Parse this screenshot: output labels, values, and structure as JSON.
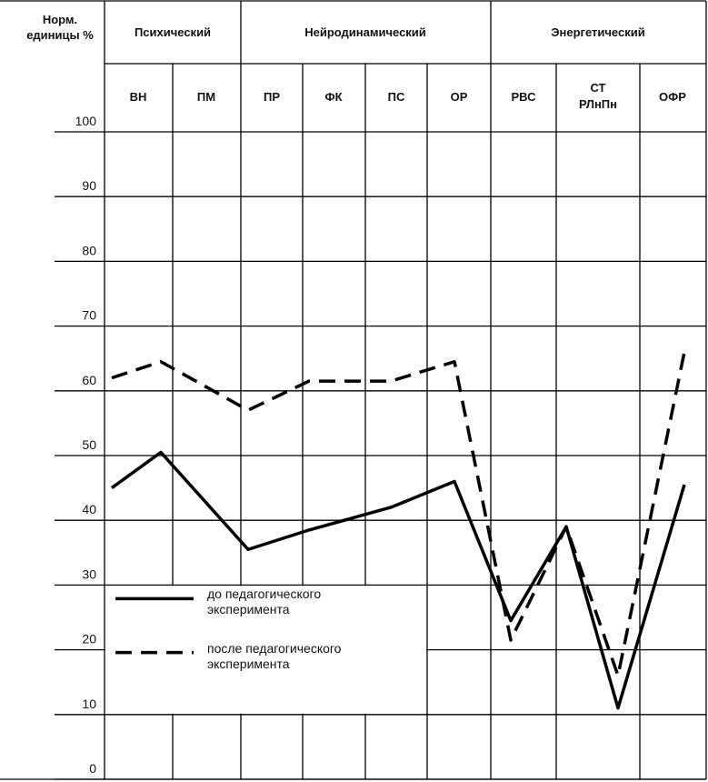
{
  "chart_data": {
    "type": "line",
    "y_label": "Норм. единицы %",
    "groups": [
      "Психический",
      "Нейродинамический",
      "Энергетический"
    ],
    "categories": [
      "ВН",
      "ПМ",
      "ПР",
      "ФК",
      "ПС",
      "ОР",
      "РВС",
      "СТ",
      "РЛнПн",
      "ОФР"
    ],
    "series": [
      {
        "name": "до педагогического эксперимента",
        "color": "#000000",
        "dash": false,
        "values": [
          45,
          50.5,
          35.5,
          38.5,
          42,
          46,
          24.5,
          39,
          11,
          45.5
        ]
      },
      {
        "name": "после педагогического эксперимента",
        "color": "#000000",
        "dash": true,
        "values": [
          62,
          64.5,
          57,
          61.5,
          61.5,
          64.5,
          21.5,
          39,
          16,
          66
        ]
      }
    ],
    "ylim": [
      0,
      100
    ],
    "yticks": [
      0,
      10,
      20,
      30,
      40,
      50,
      60,
      70,
      80,
      90,
      100
    ],
    "grid": true
  }
}
